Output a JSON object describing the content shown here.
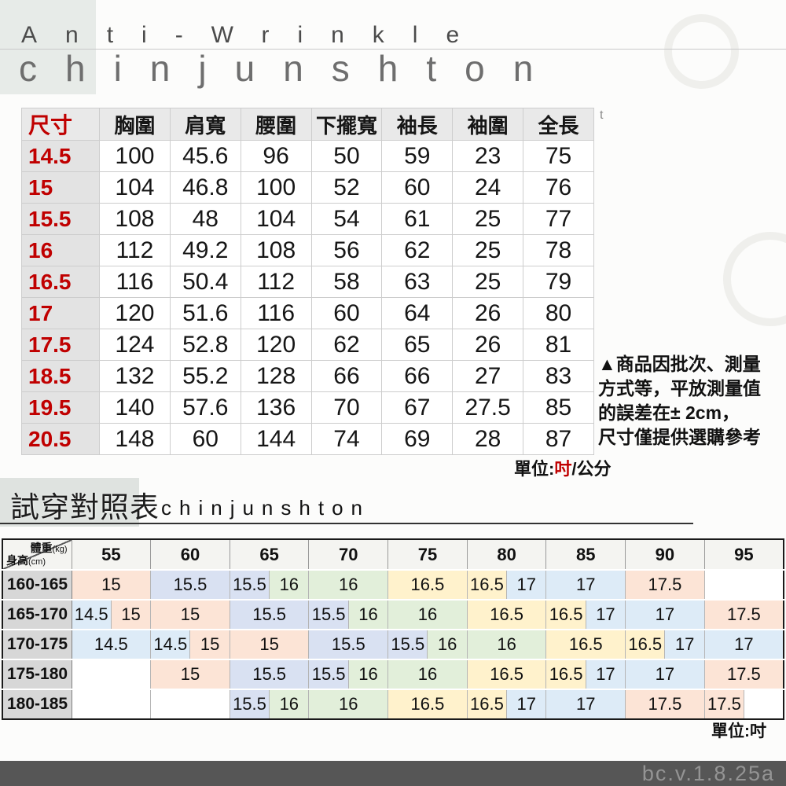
{
  "page": {
    "tagline": "Anti-Wrinkle",
    "brand": "chinjunshton",
    "footer_version": "bc.v.1.8.25a",
    "background_color": "#fcfcfb",
    "footer_bar_color": "#565656",
    "accent_red": "#c00000"
  },
  "size_table": {
    "side_mark": "t",
    "columns": [
      "尺寸",
      "胸圍",
      "肩寬",
      "腰圍",
      "下擺寬",
      "袖長",
      "袖圍",
      "全長"
    ],
    "rows": [
      {
        "size": "14.5",
        "values": [
          "100",
          "45.6",
          "96",
          "50",
          "59",
          "23",
          "75"
        ]
      },
      {
        "size": "15",
        "values": [
          "104",
          "46.8",
          "100",
          "52",
          "60",
          "24",
          "76"
        ]
      },
      {
        "size": "15.5",
        "values": [
          "108",
          "48",
          "104",
          "54",
          "61",
          "25",
          "77"
        ]
      },
      {
        "size": "16",
        "values": [
          "112",
          "49.2",
          "108",
          "56",
          "62",
          "25",
          "78"
        ]
      },
      {
        "size": "16.5",
        "values": [
          "116",
          "50.4",
          "112",
          "58",
          "63",
          "25",
          "79"
        ]
      },
      {
        "size": "17",
        "values": [
          "120",
          "51.6",
          "116",
          "60",
          "64",
          "26",
          "80"
        ]
      },
      {
        "size": "17.5",
        "values": [
          "124",
          "52.8",
          "120",
          "62",
          "65",
          "26",
          "81"
        ]
      },
      {
        "size": "18.5",
        "values": [
          "132",
          "55.2",
          "128",
          "66",
          "66",
          "27",
          "83"
        ]
      },
      {
        "size": "19.5",
        "values": [
          "140",
          "57.6",
          "136",
          "70",
          "67",
          "27.5",
          "85"
        ]
      },
      {
        "size": "20.5",
        "values": [
          "148",
          "60",
          "144",
          "74",
          "69",
          "28",
          "87"
        ]
      }
    ],
    "note_lines": [
      "▲商品因批次、測量",
      "方式等，平放測量值",
      "的誤差在± 2cm，",
      "尺寸僅提供選購參考"
    ],
    "unit_prefix": "單位:",
    "unit_highlight": "吋",
    "unit_suffix": "/公分"
  },
  "fit_section": {
    "title": "試穿對照表",
    "brand": "chinjunshton"
  },
  "fit_table": {
    "corner": {
      "weight_label": "體重",
      "weight_unit": "(kg)",
      "height_label": "身高",
      "height_unit": "(cm)"
    },
    "weights": [
      "55",
      "60",
      "65",
      "70",
      "75",
      "80",
      "85",
      "90",
      "95"
    ],
    "palette": {
      "peach": "#fce4d6",
      "blue": "#ddebf7",
      "lavender": "#d9e1f2",
      "green": "#e2efda",
      "yellow": "#fff2cc",
      "blank": "#ffffff"
    },
    "rows": [
      {
        "height": "160-165",
        "cells": [
          {
            "v": "15",
            "c": "peach",
            "span": 2
          },
          {
            "v": "15.5",
            "c": "lavender",
            "span": 2
          },
          {
            "v": "15.5",
            "c": "lavender",
            "span": 1
          },
          {
            "v": "16",
            "c": "green",
            "span": 1
          },
          {
            "v": "16",
            "c": "green",
            "span": 2
          },
          {
            "v": "16.5",
            "c": "yellow",
            "span": 2
          },
          {
            "v": "16.5",
            "c": "yellow",
            "span": 1
          },
          {
            "v": "17",
            "c": "blue",
            "span": 1
          },
          {
            "v": "17",
            "c": "blue",
            "span": 2
          },
          {
            "v": "17.5",
            "c": "peach",
            "span": 2
          },
          {
            "v": "",
            "c": "blank",
            "span": 2
          }
        ]
      },
      {
        "height": "165-170",
        "cells": [
          {
            "v": "14.5",
            "c": "blue",
            "span": 1
          },
          {
            "v": "15",
            "c": "peach",
            "span": 1
          },
          {
            "v": "15",
            "c": "peach",
            "span": 2
          },
          {
            "v": "15.5",
            "c": "lavender",
            "span": 2
          },
          {
            "v": "15.5",
            "c": "lavender",
            "span": 1
          },
          {
            "v": "16",
            "c": "green",
            "span": 1
          },
          {
            "v": "16",
            "c": "green",
            "span": 2
          },
          {
            "v": "16.5",
            "c": "yellow",
            "span": 2
          },
          {
            "v": "16.5",
            "c": "yellow",
            "span": 1
          },
          {
            "v": "17",
            "c": "blue",
            "span": 1
          },
          {
            "v": "17",
            "c": "blue",
            "span": 2
          },
          {
            "v": "17.5",
            "c": "peach",
            "span": 2
          }
        ]
      },
      {
        "height": "170-175",
        "cells": [
          {
            "v": "14.5",
            "c": "blue",
            "span": 2
          },
          {
            "v": "14.5",
            "c": "blue",
            "span": 1
          },
          {
            "v": "15",
            "c": "peach",
            "span": 1
          },
          {
            "v": "15",
            "c": "peach",
            "span": 2
          },
          {
            "v": "15.5",
            "c": "lavender",
            "span": 2
          },
          {
            "v": "15.5",
            "c": "lavender",
            "span": 1
          },
          {
            "v": "16",
            "c": "green",
            "span": 1
          },
          {
            "v": "16",
            "c": "green",
            "span": 2
          },
          {
            "v": "16.5",
            "c": "yellow",
            "span": 2
          },
          {
            "v": "16.5",
            "c": "yellow",
            "span": 1
          },
          {
            "v": "17",
            "c": "blue",
            "span": 1
          },
          {
            "v": "17",
            "c": "blue",
            "span": 2
          }
        ]
      },
      {
        "height": "175-180",
        "cells": [
          {
            "v": "",
            "c": "blank",
            "span": 2
          },
          {
            "v": "15",
            "c": "peach",
            "span": 2
          },
          {
            "v": "15.5",
            "c": "lavender",
            "span": 2
          },
          {
            "v": "15.5",
            "c": "lavender",
            "span": 1
          },
          {
            "v": "16",
            "c": "green",
            "span": 1
          },
          {
            "v": "16",
            "c": "green",
            "span": 2
          },
          {
            "v": "16.5",
            "c": "yellow",
            "span": 2
          },
          {
            "v": "16.5",
            "c": "yellow",
            "span": 1
          },
          {
            "v": "17",
            "c": "blue",
            "span": 1
          },
          {
            "v": "17",
            "c": "blue",
            "span": 2
          },
          {
            "v": "17.5",
            "c": "peach",
            "span": 2
          }
        ]
      },
      {
        "height": "180-185",
        "cells": [
          {
            "v": "",
            "c": "blank",
            "span": 2
          },
          {
            "v": "",
            "c": "blank",
            "span": 2
          },
          {
            "v": "15.5",
            "c": "lavender",
            "span": 1
          },
          {
            "v": "16",
            "c": "green",
            "span": 1
          },
          {
            "v": "16",
            "c": "green",
            "span": 2
          },
          {
            "v": "16.5",
            "c": "yellow",
            "span": 2
          },
          {
            "v": "16.5",
            "c": "yellow",
            "span": 1
          },
          {
            "v": "17",
            "c": "blue",
            "span": 1
          },
          {
            "v": "17",
            "c": "blue",
            "span": 2
          },
          {
            "v": "17.5",
            "c": "peach",
            "span": 2
          },
          {
            "v": "17.5",
            "c": "peach",
            "span": 1
          },
          {
            "v": "",
            "c": "blank",
            "span": 1
          }
        ]
      }
    ],
    "unit": "單位:吋"
  }
}
